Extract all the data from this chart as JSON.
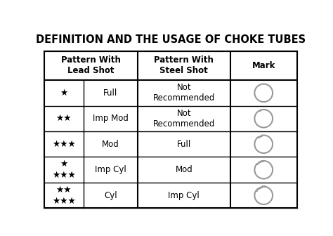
{
  "title": "DEFINITION AND THE USAGE OF CHOKE TUBES",
  "col_headers": [
    "Pattern With\nLead Shot",
    "Pattern With\nSteel Shot",
    "Mark"
  ],
  "rows": [
    {
      "stars_top": "",
      "stars_bottom": "★",
      "label": "Full",
      "steel": "Not\nRecommended",
      "notch_dots": 0
    },
    {
      "stars_top": "",
      "stars_bottom": "★★",
      "label": "Imp Mod",
      "steel": "Not\nRecommended",
      "notch_dots": 1
    },
    {
      "stars_top": "",
      "stars_bottom": "★★★",
      "label": "Mod",
      "steel": "Full",
      "notch_dots": 3
    },
    {
      "stars_top": "★",
      "stars_bottom": "★★★",
      "label": "Imp Cyl",
      "steel": "Mod",
      "notch_dots": 5
    },
    {
      "stars_top": "★★",
      "stars_bottom": "★★★",
      "label": "Cyl",
      "steel": "Imp Cyl",
      "notch_dots": 7
    }
  ],
  "bg_color": "#ffffff",
  "text_color": "#000000",
  "grid_color": "#000000",
  "circle_color": "#999999",
  "title_fontsize": 10.5,
  "header_fontsize": 8.5,
  "cell_fontsize": 8.5,
  "star_fontsize": 9
}
